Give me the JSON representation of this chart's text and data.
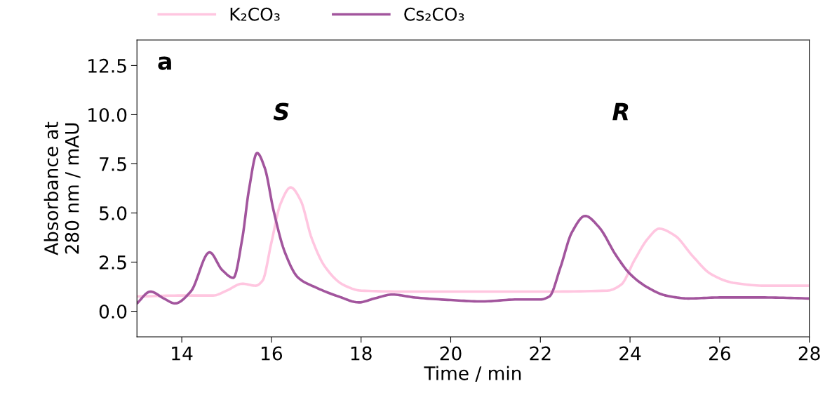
{
  "chart_data": {
    "type": "line",
    "xlabel": "Time / min",
    "ylabel": "Absorbance at\n280 nm / mAU",
    "xlim": [
      13,
      28
    ],
    "xticks": [
      14,
      16,
      18,
      20,
      22,
      24,
      26,
      28
    ],
    "ylim": [
      -1.3,
      13.8
    ],
    "yticks": [
      {
        "value": 0,
        "label": "0.0"
      },
      2.5,
      {
        "value": 5,
        "label": "5.0"
      },
      7.5,
      {
        "value": 10,
        "label": "10.0"
      },
      12.5
    ],
    "legend": "top",
    "grid": false,
    "line_style": "solid",
    "marker": "none",
    "annotations": [
      "a",
      "S",
      "R"
    ],
    "series": [
      {
        "name": "K₂CO₃",
        "color": "#ffc6e0",
        "x": [
          13.0,
          14.0,
          14.7,
          15.0,
          15.35,
          15.65,
          15.8,
          16.0,
          16.2,
          16.43,
          16.65,
          16.9,
          17.2,
          17.6,
          18.0,
          19.0,
          22.0,
          23.5,
          23.8,
          24.1,
          24.4,
          24.65,
          25.0,
          25.4,
          25.8,
          26.3,
          27.0,
          28.0
        ],
        "values": [
          0.75,
          0.8,
          0.8,
          1.05,
          1.4,
          1.3,
          1.55,
          3.5,
          5.45,
          6.3,
          5.65,
          3.7,
          2.25,
          1.35,
          1.05,
          1.0,
          1.0,
          1.05,
          1.35,
          2.6,
          3.7,
          4.2,
          3.85,
          2.8,
          1.9,
          1.45,
          1.3,
          1.3
        ]
      },
      {
        "name": "Cs₂CO₃",
        "color": "#a2559d",
        "x": [
          13.0,
          13.3,
          13.6,
          13.85,
          14.2,
          14.62,
          14.9,
          15.15,
          15.35,
          15.5,
          15.68,
          15.85,
          16.05,
          16.3,
          16.6,
          17.0,
          17.5,
          17.95,
          18.3,
          18.7,
          19.2,
          20.0,
          20.7,
          21.5,
          22.0,
          22.2,
          22.45,
          22.7,
          23.0,
          23.3,
          23.7,
          24.0,
          24.4,
          24.8,
          25.3,
          26.0,
          27.0,
          28.0
        ],
        "values": [
          0.4,
          1.0,
          0.65,
          0.4,
          1.0,
          3.0,
          2.1,
          1.7,
          3.7,
          6.2,
          8.05,
          7.3,
          5.1,
          3.0,
          1.7,
          1.2,
          0.75,
          0.45,
          0.65,
          0.85,
          0.7,
          0.57,
          0.5,
          0.6,
          0.6,
          0.75,
          2.25,
          4.0,
          4.85,
          4.3,
          2.8,
          1.9,
          1.2,
          0.8,
          0.65,
          0.7,
          0.7,
          0.65
        ]
      }
    ]
  }
}
